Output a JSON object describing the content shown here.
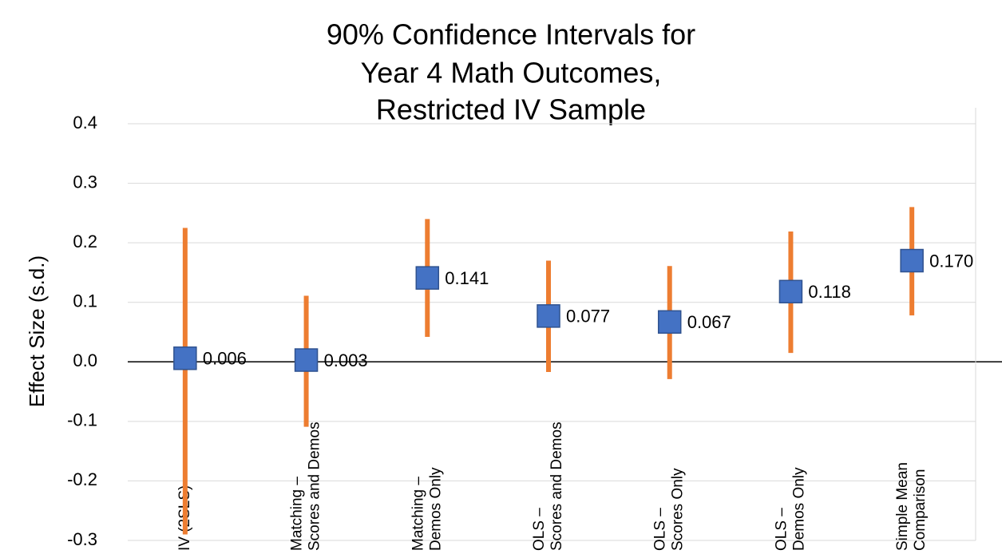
{
  "chart_data": {
    "type": "errorbar",
    "title": [
      "90% Confidence Intervals for",
      "Year 4 Math Outcomes,",
      "Restricted IV Sample"
    ],
    "y_label": "Effect Size (s.d.)",
    "categories": [
      [
        "IV (2SLS)"
      ],
      [
        "Matching –",
        "Scores and Demos"
      ],
      [
        "Matching –",
        "Demos Only"
      ],
      [
        "OLS –",
        "Scores and Demos"
      ],
      [
        "OLS –",
        "Scores Only"
      ],
      [
        "OLS –",
        "Demos Only"
      ],
      [
        "Simple Mean",
        "Comparison"
      ]
    ],
    "values": [
      0.006,
      0.003,
      0.141,
      0.077,
      0.067,
      0.118,
      0.17
    ],
    "value_labels": [
      "0.006",
      "0.003",
      "0.141",
      "0.077",
      "0.067",
      "0.118",
      "0.170"
    ],
    "low": [
      -0.29,
      -0.109,
      0.042,
      -0.017,
      -0.029,
      0.015,
      0.078
    ],
    "high": [
      0.225,
      0.111,
      0.24,
      0.17,
      0.161,
      0.219,
      0.26
    ],
    "color": "#4472c4",
    "error_color": "#ed7d31",
    "ylim": [
      -0.3,
      0.4
    ],
    "yticks": [
      -0.3,
      -0.2,
      -0.1,
      {
        "value": 0,
        "label": "0.0"
      },
      0.1,
      0.2,
      0.3,
      0.4
    ],
    "grid": true
  }
}
